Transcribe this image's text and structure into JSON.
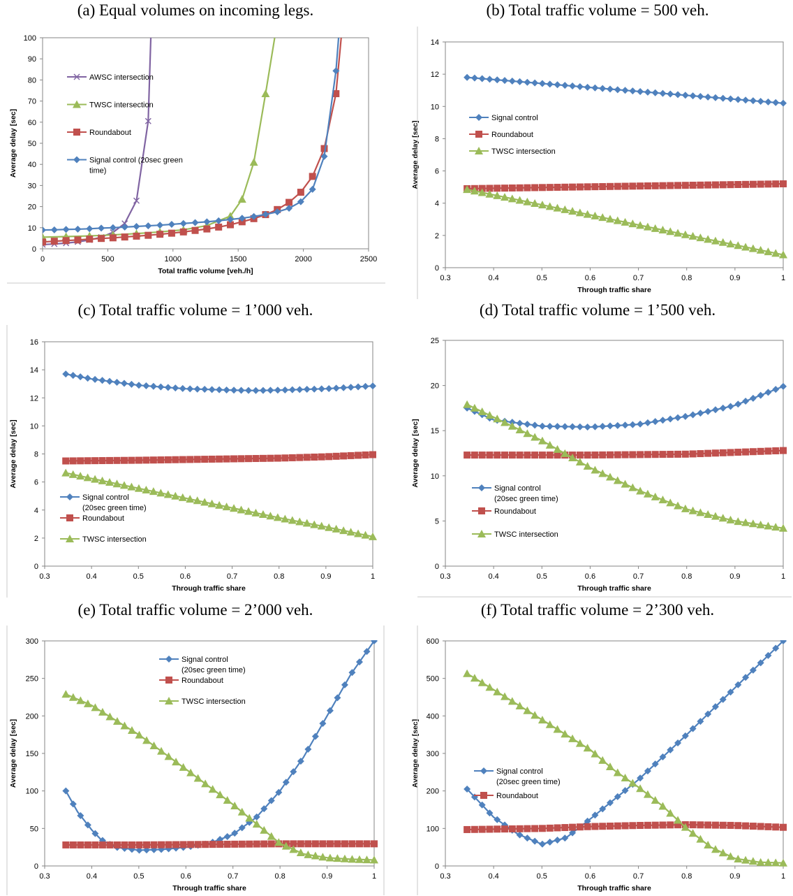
{
  "colors": {
    "awsc": "#8064a2",
    "twsc": "#9bbb59",
    "roundabout": "#c0504d",
    "signal": "#4f81bd",
    "axis": "#868686"
  },
  "chart_data": [
    {
      "caption": "(a) Equal volumes on incoming legs.",
      "type": "line",
      "xlabel": "Total traffic volume [veh./h]",
      "ylabel": "Average delay [sec]",
      "xlim": [
        0,
        2500
      ],
      "ylim": [
        0,
        100
      ],
      "xticks": [
        "0",
        "500",
        "1000",
        "1500",
        "2000",
        "2500"
      ],
      "yticks": [
        "0",
        "10",
        "20",
        "30",
        "40",
        "50",
        "60",
        "70",
        "80",
        "90",
        "100"
      ],
      "legend": [
        {
          "label": "AWSC intersection"
        },
        {
          "label": "TWSC intersection"
        },
        {
          "label": "Roundabout"
        },
        {
          "label": "Signal control (20sec green",
          "label2": "time)"
        }
      ],
      "series": [
        {
          "name": "AWSC intersection",
          "color": "#8064a2",
          "marker": "x",
          "x": [
            0,
            90,
            180,
            270,
            360,
            450,
            540,
            630,
            720,
            810,
            830
          ],
          "values": [
            2.0,
            2.3,
            2.7,
            3.3,
            4.2,
            5.5,
            7.8,
            12.0,
            22.8,
            60.5,
            100
          ]
        },
        {
          "name": "TWSC intersection",
          "color": "#9bbb59",
          "marker": "triangle",
          "x": [
            0,
            180,
            360,
            540,
            720,
            900,
            1080,
            1260,
            1440,
            1530,
            1620,
            1710,
            1780
          ],
          "values": [
            5.5,
            5.8,
            6.1,
            6.6,
            7.2,
            8.0,
            9.0,
            11.0,
            15.5,
            23.5,
            41.0,
            73.5,
            100
          ]
        },
        {
          "name": "Roundabout",
          "color": "#c0504d",
          "marker": "square",
          "x": [
            0,
            90,
            180,
            270,
            360,
            450,
            540,
            630,
            720,
            810,
            900,
            990,
            1080,
            1170,
            1260,
            1350,
            1440,
            1530,
            1620,
            1710,
            1800,
            1890,
            1980,
            2070,
            2160,
            2250,
            2290
          ],
          "values": [
            3.2,
            3.6,
            3.9,
            4.2,
            4.6,
            4.9,
            5.2,
            5.6,
            6.0,
            6.4,
            6.9,
            7.4,
            8.0,
            8.7,
            9.4,
            10.3,
            11.4,
            12.8,
            14.3,
            16.2,
            18.6,
            22.0,
            26.8,
            34.3,
            47.5,
            73.5,
            100
          ]
        },
        {
          "name": "Signal control (20sec green time)",
          "color": "#4f81bd",
          "marker": "diamond",
          "x": [
            0,
            90,
            180,
            270,
            360,
            450,
            540,
            630,
            720,
            810,
            900,
            990,
            1080,
            1170,
            1260,
            1350,
            1440,
            1530,
            1620,
            1710,
            1800,
            1890,
            1980,
            2070,
            2160,
            2250,
            2270
          ],
          "values": [
            8.9,
            9.0,
            9.2,
            9.3,
            9.5,
            9.8,
            10.0,
            10.3,
            10.6,
            10.9,
            11.2,
            11.6,
            12.0,
            12.4,
            12.8,
            13.3,
            13.9,
            14.5,
            15.3,
            16.3,
            17.5,
            19.2,
            22.3,
            28.2,
            43.8,
            84.3,
            100
          ]
        }
      ]
    },
    {
      "caption": "(b) Total traffic volume = 500 veh.",
      "type": "line",
      "xlabel": "Through traffic share",
      "ylabel": "Average delay [sec]",
      "xlim": [
        0.3,
        1
      ],
      "ylim": [
        0,
        14
      ],
      "xticks": [
        "0.3",
        "0.4",
        "0.5",
        "0.6",
        "0.7",
        "0.8",
        "0.9",
        "1"
      ],
      "yticks": [
        "0",
        "2",
        "4",
        "6",
        "8",
        "10",
        "12",
        "14"
      ],
      "legend": [
        {
          "label": "Signal control"
        },
        {
          "label": "Roundabout"
        },
        {
          "label": "TWSC intersection"
        }
      ],
      "series": [
        {
          "name": "Signal control",
          "color": "#4f81bd",
          "marker": "diamond",
          "x": [
            0.345,
            1
          ],
          "values": [
            11.8,
            10.2
          ]
        },
        {
          "name": "Roundabout",
          "color": "#c0504d",
          "marker": "square",
          "x": [
            0.345,
            1
          ],
          "values": [
            4.9,
            5.2
          ]
        },
        {
          "name": "TWSC intersection",
          "color": "#9bbb59",
          "marker": "triangle",
          "x": [
            0.345,
            0.5,
            0.7,
            1
          ],
          "values": [
            4.85,
            3.9,
            2.65,
            0.8
          ]
        }
      ]
    },
    {
      "caption": "(c) Total traffic volume = 1’000 veh.",
      "type": "line",
      "xlabel": "Through traffic share",
      "ylabel": "Average delay [sec]",
      "xlim": [
        0.3,
        1
      ],
      "ylim": [
        0,
        16
      ],
      "xticks": [
        "0.3",
        "0.4",
        "0.5",
        "0.6",
        "0.7",
        "0.8",
        "0.9",
        "1"
      ],
      "yticks": [
        "0",
        "2",
        "4",
        "6",
        "8",
        "10",
        "12",
        "14",
        "16"
      ],
      "legend": [
        {
          "label": "Signal control",
          "label2": "(20sec green time)"
        },
        {
          "label": "Roundabout"
        },
        {
          "label": "TWSC intersection"
        }
      ],
      "series": [
        {
          "name": "Signal control (20sec green time)",
          "color": "#4f81bd",
          "marker": "diamond",
          "x": [
            0.345,
            0.4,
            0.5,
            0.6,
            0.7,
            0.75,
            0.8,
            0.9,
            1
          ],
          "values": [
            13.7,
            13.35,
            12.9,
            12.65,
            12.55,
            12.52,
            12.55,
            12.65,
            12.85
          ]
        },
        {
          "name": "Roundabout",
          "color": "#c0504d",
          "marker": "square",
          "x": [
            0.345,
            0.5,
            0.6,
            0.7,
            0.8,
            0.9,
            1
          ],
          "values": [
            7.5,
            7.55,
            7.6,
            7.65,
            7.7,
            7.8,
            7.95
          ]
        },
        {
          "name": "TWSC intersection",
          "color": "#9bbb59",
          "marker": "triangle",
          "x": [
            0.345,
            0.4,
            0.5,
            0.6,
            0.7,
            0.8,
            0.9,
            1
          ],
          "values": [
            6.65,
            6.25,
            5.55,
            4.85,
            4.15,
            3.45,
            2.8,
            2.1
          ]
        }
      ]
    },
    {
      "caption": "(d) Total traffic volume = 1’500 veh.",
      "type": "line",
      "xlabel": "Through traffic share",
      "ylabel": "Average delay [sec]",
      "xlim": [
        0.3,
        1
      ],
      "ylim": [
        0,
        25
      ],
      "xticks": [
        "0.3",
        "0.4",
        "0.5",
        "0.6",
        "0.7",
        "0.8",
        "0.9",
        "1"
      ],
      "yticks": [
        "0",
        "5",
        "10",
        "15",
        "20",
        "25"
      ],
      "legend": [
        {
          "label": "Signal control",
          "label2": "(20sec green time)"
        },
        {
          "label": "Roundabout"
        },
        {
          "label": "TWSC intersection"
        }
      ],
      "series": [
        {
          "name": "Signal control (20sec green time)",
          "color": "#4f81bd",
          "marker": "diamond",
          "x": [
            0.345,
            0.4,
            0.5,
            0.6,
            0.7,
            0.8,
            0.9,
            1
          ],
          "values": [
            17.5,
            16.2,
            15.5,
            15.4,
            15.7,
            16.6,
            17.8,
            19.9
          ]
        },
        {
          "name": "Roundabout",
          "color": "#c0504d",
          "marker": "square",
          "x": [
            0.345,
            0.6,
            0.8,
            1
          ],
          "values": [
            12.3,
            12.3,
            12.4,
            12.8
          ]
        },
        {
          "name": "TWSC intersection",
          "color": "#9bbb59",
          "marker": "triangle",
          "x": [
            0.345,
            0.4,
            0.5,
            0.6,
            0.7,
            0.8,
            0.9,
            1
          ],
          "values": [
            17.9,
            16.5,
            13.9,
            10.9,
            8.4,
            6.3,
            5.0,
            4.2
          ]
        }
      ]
    },
    {
      "caption": "(e) Total traffic volume = 2’000 veh.",
      "type": "line",
      "xlabel": "Through traffic share",
      "ylabel": "Average delay [sec]",
      "xlim": [
        0.3,
        1
      ],
      "ylim": [
        0,
        300
      ],
      "xticks": [
        "0.3",
        "0.4",
        "0.5",
        "0.6",
        "0.7",
        "0.8",
        "0.9",
        "1"
      ],
      "yticks": [
        "0",
        "50",
        "100",
        "150",
        "200",
        "250",
        "300"
      ],
      "legend": [
        {
          "label": "Signal control",
          "label2": "(20sec green time)"
        },
        {
          "label": "Roundabout"
        },
        {
          "label": "TWSC intersection"
        }
      ],
      "series": [
        {
          "name": "Signal control (20sec green time)",
          "color": "#4f81bd",
          "marker": "diamond",
          "x": [
            0.345,
            0.37,
            0.4,
            0.42,
            0.45,
            0.5,
            0.55,
            0.6,
            0.65,
            0.7,
            0.75,
            0.8,
            0.85,
            0.9,
            0.95,
            1.0
          ],
          "values": [
            100,
            72,
            48,
            35,
            25,
            21,
            22,
            25,
            30,
            42,
            65,
            100,
            145,
            200,
            255,
            300
          ]
        },
        {
          "name": "Roundabout",
          "color": "#c0504d",
          "marker": "square",
          "x": [
            0.345,
            0.5,
            0.7,
            0.8,
            1.0
          ],
          "values": [
            28,
            28,
            29,
            29.5,
            29.5
          ]
        },
        {
          "name": "TWSC intersection",
          "color": "#9bbb59",
          "marker": "triangle",
          "x": [
            0.345,
            0.4,
            0.5,
            0.6,
            0.7,
            0.75,
            0.8,
            0.85,
            0.9,
            0.95,
            1.0
          ],
          "values": [
            229,
            214,
            175,
            129,
            82,
            56,
            30,
            16,
            11,
            9,
            8
          ]
        }
      ]
    },
    {
      "caption": "(f) Total traffic volume = 2’300 veh.",
      "type": "line",
      "xlabel": "Through traffic share",
      "ylabel": "Average delay [sec]",
      "xlim": [
        0.3,
        1
      ],
      "ylim": [
        0,
        600
      ],
      "xticks": [
        "0.3",
        "0.4",
        "0.5",
        "0.6",
        "0.7",
        "0.8",
        "0.9",
        "1"
      ],
      "yticks": [
        "0",
        "100",
        "200",
        "300",
        "400",
        "500",
        "600"
      ],
      "legend": [
        {
          "label": "Signal control",
          "label2": "(20sec green time)"
        },
        {
          "label": "Roundabout"
        }
      ],
      "series": [
        {
          "name": "Signal control (20sec green time)",
          "color": "#4f81bd",
          "marker": "diamond",
          "x": [
            0.345,
            0.4,
            0.45,
            0.5,
            0.55,
            0.6,
            0.7,
            0.8,
            0.9,
            1.0
          ],
          "values": [
            205,
            130,
            85,
            58,
            75,
            125,
            230,
            350,
            475,
            600
          ]
        },
        {
          "name": "Roundabout",
          "color": "#c0504d",
          "marker": "square",
          "x": [
            0.345,
            0.5,
            0.6,
            0.7,
            0.8,
            0.9,
            1.0
          ],
          "values": [
            97,
            100,
            105,
            108,
            110,
            108,
            103
          ]
        },
        {
          "name": "TWSC intersection",
          "color": "#9bbb59",
          "marker": "triangle",
          "x": [
            0.345,
            0.4,
            0.5,
            0.6,
            0.65,
            0.7,
            0.75,
            0.8,
            0.85,
            0.9,
            0.95,
            1.0
          ],
          "values": [
            513,
            470,
            390,
            310,
            255,
            210,
            160,
            100,
            50,
            20,
            10,
            8
          ]
        }
      ]
    }
  ]
}
